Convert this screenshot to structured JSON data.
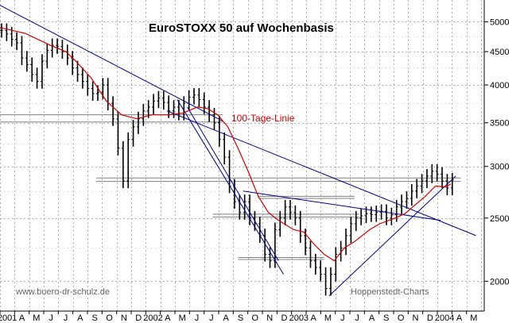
{
  "chart_data": {
    "type": "line",
    "title": "EuroSTOXX 50 auf Wochenbasis",
    "footer_left": "www.buero-dr-schulz.de",
    "footer_right": "Hoppenstedt-Charts",
    "annotation": "100-Tage-Linie",
    "y_scale": "log",
    "ylim": [
      1800,
      5400
    ],
    "y_ticks": [
      "5000",
      "4500",
      "4000",
      "3500",
      "3000",
      "2500",
      "2000"
    ],
    "x_ticks": [
      "2001",
      "A",
      "M",
      "J",
      "J",
      "A",
      "S",
      "O",
      "N",
      "D",
      "2002",
      "A",
      "M",
      "J",
      "J",
      "A",
      "S",
      "O",
      "N",
      "D",
      "2003",
      "A",
      "M",
      "J",
      "J",
      "A",
      "S",
      "O",
      "N",
      "D",
      "2004",
      "A",
      "M"
    ],
    "grid": true,
    "series": [
      {
        "name": "EuroSTOXX 50",
        "color": "#000000",
        "style": "ohlc-bars",
        "x": [
          0,
          2,
          4,
          6,
          8,
          10,
          12,
          14,
          16,
          18,
          20,
          22,
          24,
          26,
          28,
          30,
          32,
          34,
          36,
          38,
          40,
          42,
          44,
          46,
          48,
          50,
          52,
          54,
          56,
          58,
          60,
          62,
          64,
          66,
          68,
          70,
          72,
          74,
          76,
          78,
          80,
          82,
          84,
          86,
          88,
          90,
          92,
          94,
          96,
          98,
          100,
          102,
          104,
          106,
          108,
          110,
          112,
          114,
          116,
          118,
          120,
          122,
          124,
          126,
          128,
          130,
          132,
          134,
          136,
          138,
          140,
          142,
          144,
          146,
          148,
          150,
          152,
          154,
          156,
          158,
          160,
          162,
          164,
          166,
          168,
          170,
          172,
          174,
          176,
          178
        ],
        "values": [
          4850,
          4790,
          4700,
          4640,
          4400,
          4300,
          4150,
          4050,
          4350,
          4520,
          4600,
          4580,
          4500,
          4400,
          4250,
          4150,
          4050,
          3950,
          3880,
          3900,
          4000,
          3750,
          3550,
          3200,
          2850,
          3300,
          3450,
          3550,
          3650,
          3700,
          3780,
          3820,
          3760,
          3650,
          3700,
          3620,
          3750,
          3830,
          3860,
          3800,
          3700,
          3600,
          3500,
          3300,
          3100,
          2800,
          2650,
          2550,
          2650,
          2500,
          2450,
          2350,
          2200,
          2150,
          2400,
          2500,
          2600,
          2550,
          2500,
          2350,
          2250,
          2150,
          2100,
          2050,
          1950,
          2050,
          2200,
          2250,
          2350,
          2450,
          2500,
          2520,
          2540,
          2530,
          2550,
          2560,
          2500,
          2530,
          2600,
          2650,
          2680,
          2750,
          2800,
          2850,
          2900,
          2950,
          2920,
          2850,
          2780,
          2860
        ]
      },
      {
        "name": "100-Tage-Linie",
        "color": "#cc0000",
        "x": [
          0,
          10,
          20,
          26,
          30,
          36,
          42,
          48,
          54,
          60,
          66,
          72,
          78,
          82,
          86,
          90,
          94,
          98,
          102,
          106,
          110,
          116,
          120,
          124,
          128,
          132,
          136,
          140,
          146,
          150,
          156,
          160,
          164,
          168,
          172,
          176,
          178
        ],
        "values": [
          4900,
          4800,
          4600,
          4500,
          4350,
          4100,
          3780,
          3600,
          3550,
          3600,
          3600,
          3620,
          3700,
          3680,
          3600,
          3450,
          3200,
          2950,
          2700,
          2550,
          2480,
          2400,
          2380,
          2280,
          2200,
          2150,
          2250,
          2300,
          2400,
          2450,
          2500,
          2540,
          2620,
          2700,
          2800,
          2790,
          2820
        ]
      }
    ],
    "trendlines": [
      {
        "x": [
          0,
          88
        ],
        "values": [
          5300,
          3520
        ],
        "color": "#00008b"
      },
      {
        "x": [
          66,
          188
        ],
        "values": [
          3650,
          2350
        ],
        "color": "#00008b"
      },
      {
        "x": [
          70,
          112
        ],
        "values": [
          3800,
          2050
        ],
        "color": "#00008b"
      },
      {
        "x": [
          74,
          110
        ],
        "values": [
          3700,
          2150
        ],
        "color": "#00008b"
      },
      {
        "x": [
          130,
          180
        ],
        "values": [
          1900,
          2900
        ],
        "color": "#00008b"
      },
      {
        "x": [
          96,
          174
        ],
        "values": [
          2750,
          2480
        ],
        "color": "#00008b"
      }
    ],
    "levels": [
      {
        "x": [
          0,
          88
        ],
        "value": 3600,
        "color": "#808080"
      },
      {
        "x": [
          0,
          88
        ],
        "value": 3510,
        "color": "#808080"
      },
      {
        "x": [
          38,
          182
        ],
        "value": 2880,
        "color": "#808080"
      },
      {
        "x": [
          38,
          182
        ],
        "value": 2845,
        "color": "#808080"
      },
      {
        "x": [
          102,
          140
        ],
        "value": 2700,
        "color": "#808080"
      },
      {
        "x": [
          102,
          140
        ],
        "value": 2680,
        "color": "#808080"
      },
      {
        "x": [
          84,
          142
        ],
        "value": 2535,
        "color": "#808080"
      },
      {
        "x": [
          84,
          142
        ],
        "value": 2510,
        "color": "#808080"
      },
      {
        "x": [
          94,
          128
        ],
        "value": 2175,
        "color": "#808080"
      },
      {
        "x": [
          94,
          128
        ],
        "value": 2160,
        "color": "#808080"
      }
    ]
  }
}
